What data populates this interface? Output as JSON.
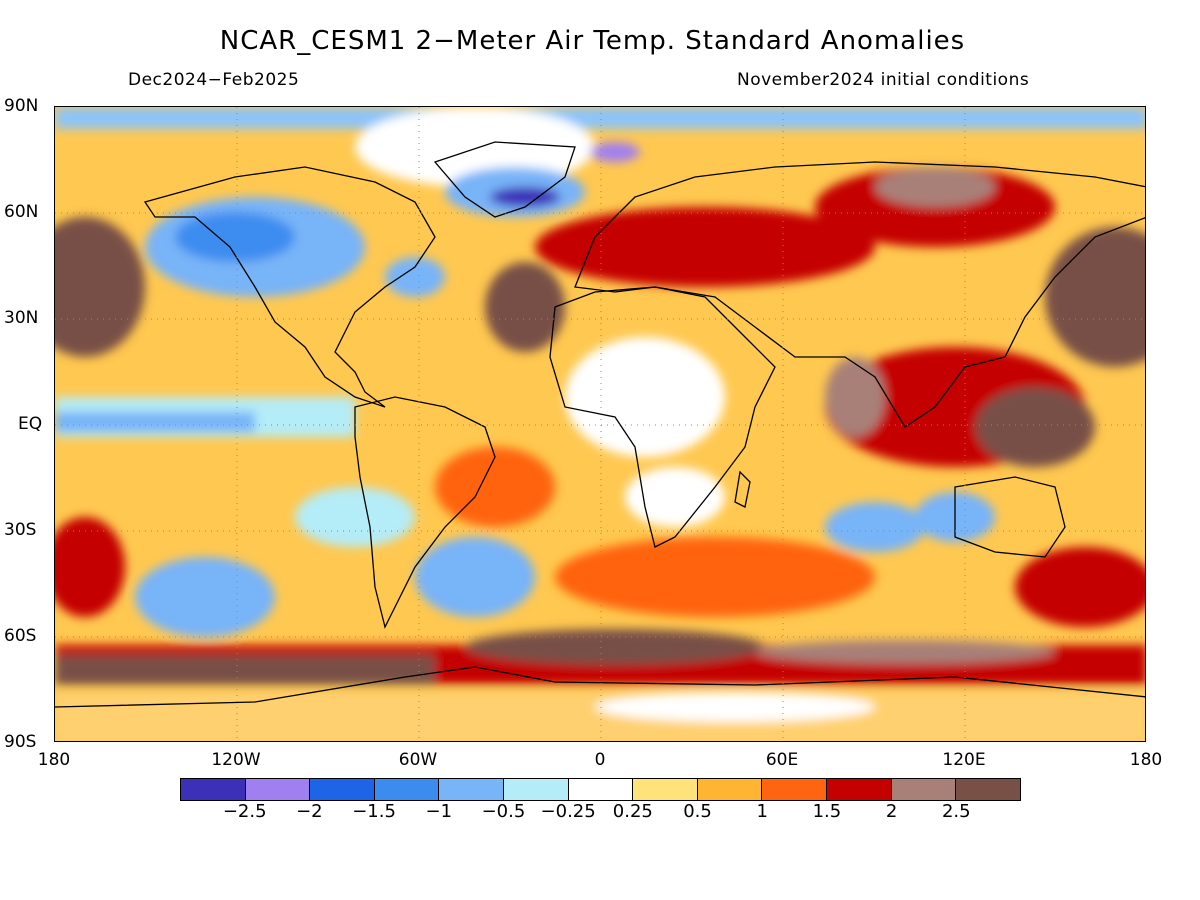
{
  "title": "NCAR_CESM1 2−Meter Air Temp. Standard Anomalies",
  "subtitle_left": "Dec2024−Feb2025",
  "subtitle_right": "November2024 initial conditions",
  "lat_labels": [
    "90N",
    "60N",
    "30N",
    "EQ",
    "30S",
    "60S",
    "90S"
  ],
  "lon_labels": [
    "180",
    "120W",
    "60W",
    "0",
    "60E",
    "120E",
    "180"
  ],
  "colorbar": {
    "colors": [
      "#3c2fb8",
      "#a080f0",
      "#1e64e6",
      "#3c8cf0",
      "#78b4f8",
      "#b4ecf8",
      "#ffffff",
      "#ffe27a",
      "#ffb432",
      "#ff6410",
      "#c40000",
      "#a88078",
      "#785046"
    ],
    "labels": [
      "−2.5",
      "−2",
      "−1.5",
      "−1",
      "−0.5",
      "−0.25",
      "0.25",
      "0.5",
      "1",
      "1.5",
      "2",
      "2.5"
    ]
  },
  "legend_placement": "bottom"
}
